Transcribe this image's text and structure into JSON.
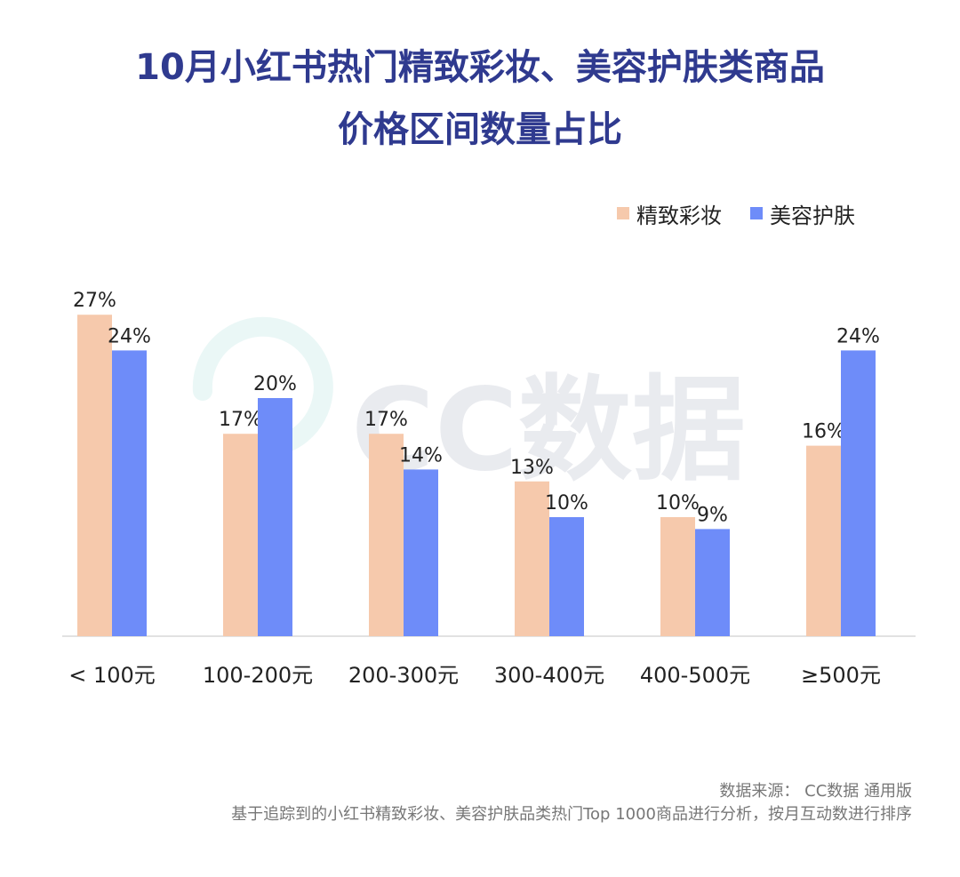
{
  "title_lines": [
    "10月小红书热门精致彩妆、美容护肤类商品",
    "价格区间数量占比"
  ],
  "watermark": "CC数据",
  "legend": [
    {
      "label": "精致彩妆",
      "color": "#f6c9ac"
    },
    {
      "label": "美容护肤",
      "color": "#6e8cf9"
    }
  ],
  "source": {
    "line1": "数据来源： CC数据 通用版",
    "line2": "基于追踪到的小红书精致彩妆、美容护肤品类热门Top 1000商品进行分析，按月互动数进行排序"
  },
  "chart_data": {
    "type": "bar",
    "categories": [
      "< 100元",
      "100-200元",
      "200-300元",
      "300-400元",
      "400-500元",
      "≥500元"
    ],
    "series": [
      {
        "name": "精致彩妆",
        "values": [
          27,
          17,
          17,
          13,
          10,
          16
        ],
        "labels": [
          "27%",
          "17%",
          "17%",
          "13%",
          "10%",
          "16%"
        ],
        "color": "#f6c9ac"
      },
      {
        "name": "美容护肤",
        "values": [
          24,
          20,
          14,
          10,
          9,
          24
        ],
        "labels": [
          "24%",
          "20%",
          "14%",
          "10%",
          "9%",
          "24%"
        ],
        "color": "#6e8cf9"
      }
    ],
    "ylim": [
      0,
      30
    ],
    "legend_position": "top-right",
    "grid": false
  }
}
